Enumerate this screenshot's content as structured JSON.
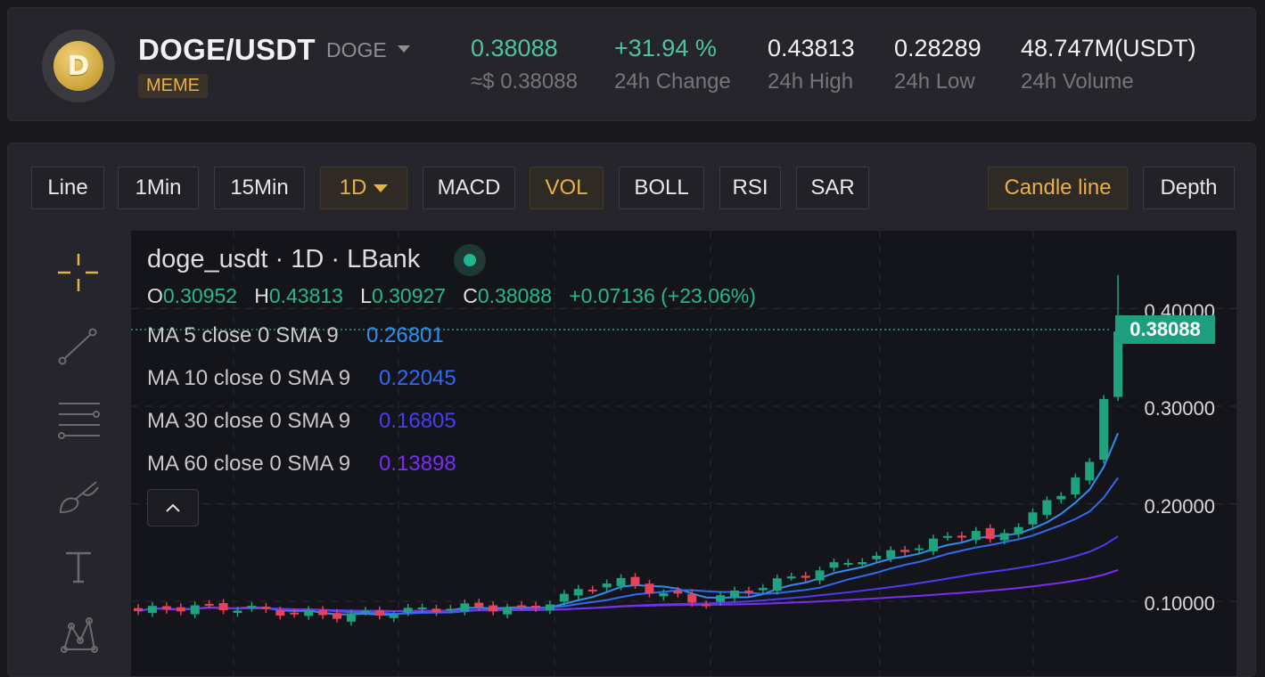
{
  "header": {
    "pair": "DOGE/USDT",
    "base": "DOGE",
    "tag": "MEME",
    "logo_letter": "D",
    "last_price": "0.38088",
    "last_price_usd": "≈$ 0.38088",
    "change": "+31.94 %",
    "change_label": "24h Change",
    "high": "0.43813",
    "high_label": "24h High",
    "low": "0.28289",
    "low_label": "24h Low",
    "volume": "48.747M(USDT)",
    "volume_label": "24h Volume"
  },
  "toolbar": {
    "line": "Line",
    "min1": "1Min",
    "min15": "15Min",
    "interval": "1D",
    "macd": "MACD",
    "vol": "VOL",
    "boll": "BOLL",
    "rsi": "RSI",
    "sar": "SAR",
    "candle": "Candle line",
    "depth": "Depth"
  },
  "chart": {
    "title": "doge_usdt · 1D · LBank",
    "o_label": "O",
    "o": "0.30952",
    "h_label": "H",
    "h": "0.43813",
    "l_label": "L",
    "l": "0.30927",
    "c_label": "C",
    "c": "0.38088",
    "change": "+0.07136 (+23.06%)",
    "ma": [
      {
        "label": "MA 5 close 0 SMA 9",
        "value": "0.26801",
        "color": "#2f8ff0"
      },
      {
        "label": "MA 10 close 0 SMA 9",
        "value": "0.22045",
        "color": "#2f6bf0"
      },
      {
        "label": "MA 30 close 0 SMA 9",
        "value": "0.16805",
        "color": "#4b3cf0"
      },
      {
        "label": "MA 60 close 0 SMA 9",
        "value": "0.13898",
        "color": "#7a2ff0"
      }
    ],
    "current_price_tag": "0.38088",
    "y_ticks": [
      "0.40000",
      "0.30000",
      "0.20000",
      "0.10000"
    ]
  },
  "colors": {
    "up": "#1fa37f",
    "down": "#e5435a",
    "accent": "#e8b04b",
    "positive_text": "#4fc3a1"
  },
  "icons": [
    "crosshair-icon",
    "trend-line-icon",
    "fib-lines-icon",
    "brush-icon",
    "text-icon",
    "pattern-icon",
    "chevron-up-icon"
  ]
}
